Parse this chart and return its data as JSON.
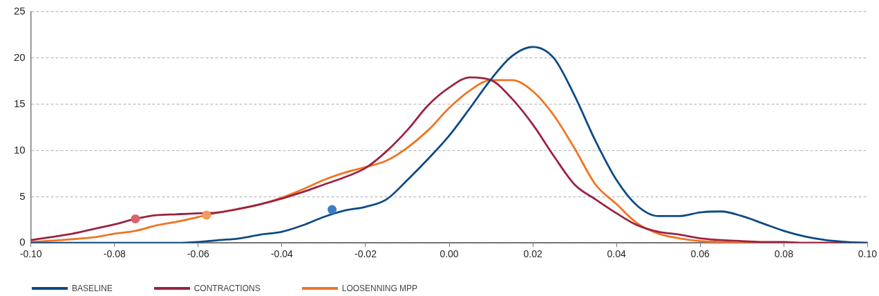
{
  "chart_data": {
    "type": "line",
    "x": [
      -0.1,
      -0.09,
      -0.085,
      -0.08,
      -0.075,
      -0.07,
      -0.065,
      -0.06,
      -0.055,
      -0.05,
      -0.045,
      -0.04,
      -0.035,
      -0.03,
      -0.025,
      -0.02,
      -0.015,
      -0.01,
      -0.005,
      0,
      0.005,
      0.01,
      0.015,
      0.02,
      0.025,
      0.03,
      0.035,
      0.04,
      0.045,
      0.05,
      0.055,
      0.06,
      0.065,
      0.07,
      0.075,
      0.08,
      0.085,
      0.09,
      0.095,
      0.1
    ],
    "series": [
      {
        "name": "BASELINE",
        "color": "#0d4a86",
        "values": [
          0,
          0,
          0,
          0,
          0,
          0,
          0,
          0.1,
          0.3,
          0.5,
          0.9,
          1.2,
          1.9,
          2.8,
          3.5,
          3.9,
          4.7,
          6.8,
          9.1,
          11.6,
          14.6,
          17.7,
          20.2,
          21.2,
          20,
          15.9,
          11,
          6.8,
          4,
          2.9,
          2.9,
          3.3,
          3.4,
          2.9,
          2.1,
          1.3,
          0.7,
          0.3,
          0.1,
          0
        ]
      },
      {
        "name": "CONTRACTIONS",
        "color": "#9b2241",
        "values": [
          0.3,
          1,
          1.5,
          2,
          2.6,
          3,
          3.1,
          3.2,
          3.3,
          3.7,
          4.2,
          4.8,
          5.5,
          6.3,
          7.1,
          8.1,
          9.9,
          12.2,
          14.9,
          16.8,
          17.9,
          17.6,
          15.6,
          12.8,
          9.4,
          6.3,
          4.7,
          3.2,
          1.9,
          1.2,
          0.9,
          0.5,
          0.3,
          0.2,
          0.1,
          0.1,
          0,
          0,
          0,
          0
        ]
      },
      {
        "name": "LOOSENNING MPP",
        "color": "#f07322",
        "values": [
          0.1,
          0.4,
          0.6,
          1,
          1.3,
          1.9,
          2.3,
          2.8,
          3.3,
          3.7,
          4.2,
          4.9,
          5.8,
          6.8,
          7.6,
          8.2,
          8.9,
          10.3,
          12.2,
          14.6,
          16.5,
          17.6,
          17.6,
          16.4,
          13.8,
          10.2,
          6.3,
          4.2,
          2.1,
          1,
          0.5,
          0.2,
          0.1,
          0,
          0,
          0,
          0,
          0,
          0,
          0
        ]
      },
      {
        "type": "scatter",
        "marker": "circle",
        "color": "#3b7dc4",
        "x": [
          -0.028
        ],
        "values": [
          3.6
        ]
      },
      {
        "type": "scatter",
        "marker": "circle",
        "color": "#d9646e",
        "x": [
          -0.075
        ],
        "values": [
          2.6
        ]
      },
      {
        "type": "scatter",
        "marker": "circle",
        "color": "#f59a5a",
        "x": [
          -0.058
        ],
        "values": [
          3.0
        ]
      }
    ],
    "xlim": [
      -0.1,
      0.1
    ],
    "xticks": [
      {
        "value": -0.1,
        "label": "-0.10"
      },
      {
        "value": -0.08,
        "label": "-0.08"
      },
      {
        "value": -0.06,
        "label": "-0.06"
      },
      {
        "value": -0.04,
        "label": "-0.04"
      },
      {
        "value": -0.02,
        "label": "-0.02"
      },
      {
        "value": 0,
        "label": "0.00"
      },
      {
        "value": 0.02,
        "label": "0.02"
      },
      {
        "value": 0.04,
        "label": "0.04"
      },
      {
        "value": 0.06,
        "label": "0.06"
      },
      {
        "value": 0.08,
        "label": "0.08"
      },
      {
        "value": 0.1,
        "label": "0.10"
      }
    ],
    "ylim": [
      0,
      25
    ],
    "yticks": [
      0,
      5,
      10,
      15,
      20,
      25
    ],
    "grid": "y",
    "legend": "bottom left",
    "marker": "none",
    "line_style": "solid"
  }
}
